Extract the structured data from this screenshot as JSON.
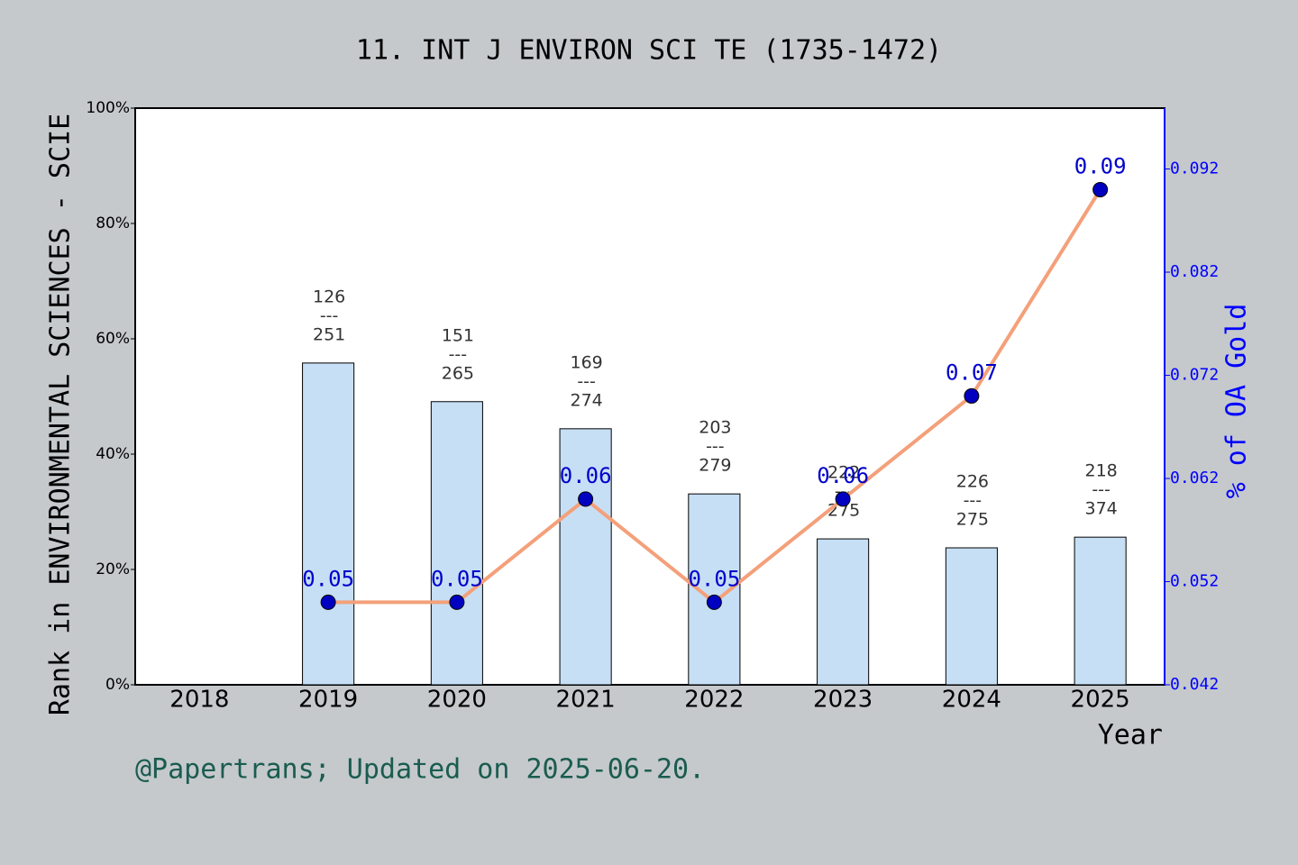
{
  "chart_data": {
    "type": "bar-line",
    "title": "11. INT J ENVIRON SCI TE (1735-1472)",
    "ylabel": "Rank in ENVIRONMENTAL SCIENCES - SCIE",
    "y2label": "% of OA Gold",
    "xlabel": "Year",
    "footnote": "@Papertrans; Updated on 2025-06-20.",
    "categories": [
      "2018",
      "2019",
      "2020",
      "2021",
      "2022",
      "2023",
      "2024",
      "2025"
    ],
    "ylim": [
      0,
      100
    ],
    "yticks": [
      {
        "value": 0,
        "label": "0%"
      },
      {
        "value": 20,
        "label": "20%"
      },
      {
        "value": 40,
        "label": "40%"
      },
      {
        "value": 60,
        "label": "60%"
      },
      {
        "value": 80,
        "label": "80%"
      },
      {
        "value": 100,
        "label": "100%"
      }
    ],
    "y2lim": [
      0.042,
      0.0979
    ],
    "y2ticks": [
      0.042,
      0.052,
      0.062,
      0.072,
      0.082,
      0.092
    ],
    "separator": "---",
    "series": [
      {
        "type": "bar",
        "color": "#c6dff5",
        "values": [
          null,
          55.8,
          49.1,
          44.4,
          33.1,
          25.3,
          23.75,
          25.6
        ],
        "rank_labels": [
          null,
          {
            "rank": "126",
            "total": "251"
          },
          {
            "rank": "151",
            "total": "265"
          },
          {
            "rank": "169",
            "total": "274"
          },
          {
            "rank": "203",
            "total": "279"
          },
          {
            "rank": "222",
            "total": "275"
          },
          {
            "rank": "226",
            "total": "275"
          },
          {
            "rank": "218",
            "total": "374"
          }
        ]
      },
      {
        "type": "line",
        "axis": "y2",
        "color": "#f4a07a",
        "marker_color": "#0000c0",
        "values": [
          null,
          0.05,
          0.05,
          0.06,
          0.05,
          0.06,
          0.07,
          0.09
        ],
        "value_labels": [
          null,
          "0.05",
          "0.05",
          "0.06",
          "0.05",
          "0.06",
          "0.07",
          "0.09"
        ]
      }
    ]
  }
}
